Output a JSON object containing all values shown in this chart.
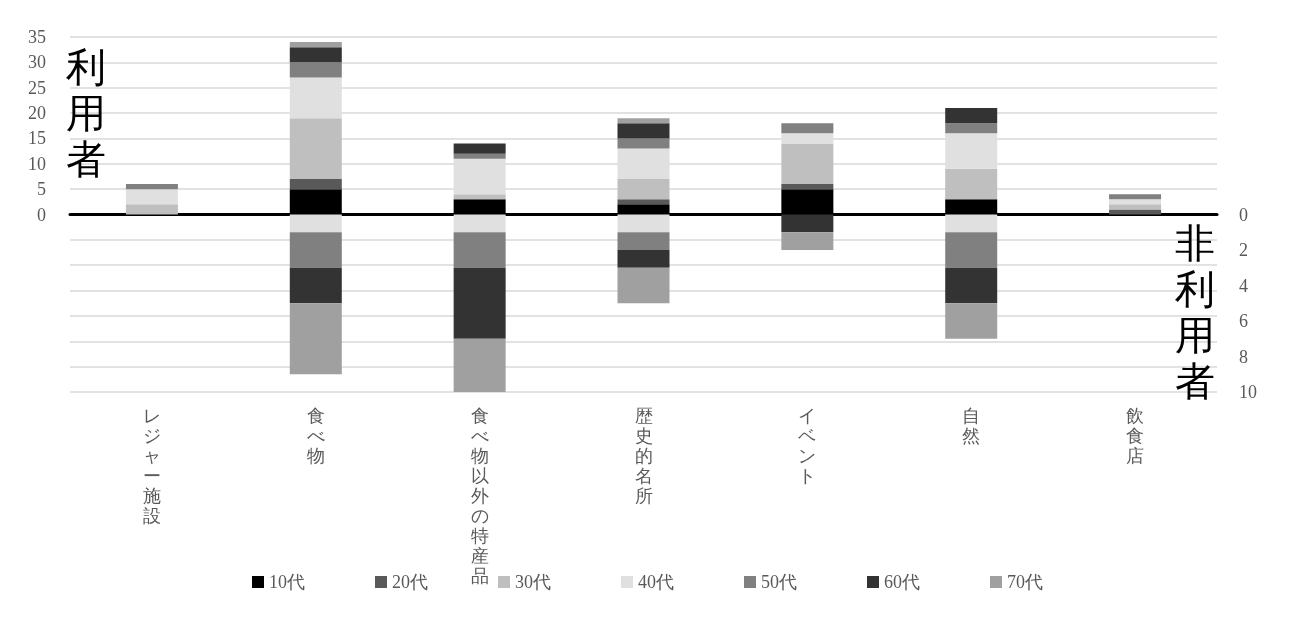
{
  "chart_data": {
    "type": "bar",
    "stacked": true,
    "ylabel": "利用者",
    "y2label": "非利用者",
    "categories": [
      "レジャー施設",
      "食べ物",
      "食べ物以外の特産品",
      "歴史的名所",
      "イベント",
      "自然",
      "飲食店"
    ],
    "series": [
      {
        "name": "10代",
        "color": "#000000",
        "values": [
          0,
          5,
          3,
          2,
          5,
          3,
          0
        ]
      },
      {
        "name": "20代",
        "color": "#595959",
        "values": [
          0,
          2,
          0,
          1,
          1,
          0,
          1
        ]
      },
      {
        "name": "30代",
        "color": "#bfbfbf",
        "values": [
          2,
          12,
          1,
          4,
          8,
          6,
          1
        ]
      },
      {
        "name": "40代",
        "color": "#e0e0e0",
        "values": [
          3,
          8,
          7,
          6,
          2,
          7,
          1
        ]
      },
      {
        "name": "50代",
        "color": "#808080",
        "values": [
          1,
          3,
          1,
          2,
          2,
          2,
          1
        ]
      },
      {
        "name": "60代",
        "color": "#333333",
        "values": [
          0,
          3,
          2,
          3,
          0,
          3,
          0
        ]
      },
      {
        "name": "70代",
        "color": "#a0a0a0",
        "values": [
          0,
          1,
          0,
          1,
          0,
          0,
          0
        ]
      },
      {
        "axis": "y2",
        "color": "#e0e0e0",
        "values": [
          0,
          1,
          1,
          1,
          0,
          1,
          0
        ]
      },
      {
        "axis": "y2",
        "color": "#808080",
        "values": [
          0,
          2,
          2,
          1,
          0,
          2,
          0
        ]
      },
      {
        "axis": "y2",
        "color": "#333333",
        "values": [
          0,
          2,
          4,
          1,
          1,
          2,
          0
        ]
      },
      {
        "axis": "y2",
        "color": "#a0a0a0",
        "values": [
          0,
          4,
          3,
          2,
          1,
          2,
          0
        ]
      }
    ],
    "ylim": [
      -35,
      35
    ],
    "yticks": [
      0,
      5,
      10,
      15,
      20,
      25,
      30,
      35
    ],
    "y2lim": [
      10,
      -10
    ],
    "y2ticks": [
      0,
      2,
      4,
      6,
      8,
      10
    ],
    "grid": "y",
    "legend": "bottom"
  }
}
